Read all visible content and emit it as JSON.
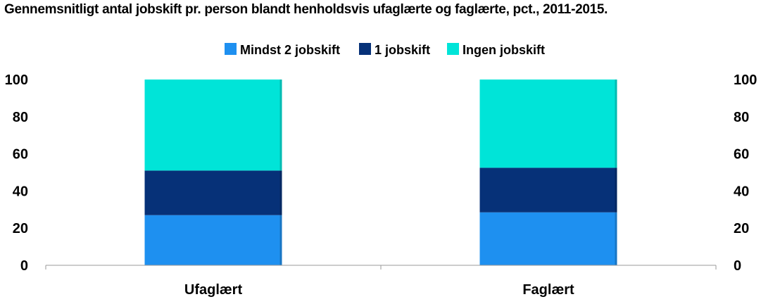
{
  "chart_data": {
    "type": "bar",
    "stacked": true,
    "title": "Gennemsnitligt antal jobskift pr. person blandt henholdsvis ufaglærte og faglærte, pct., 2011-2015.",
    "categories": [
      "Ufaglært",
      "Faglært"
    ],
    "series": [
      {
        "name": "Mindst 2 jobskift",
        "color": "#1e90f0",
        "values": [
          27,
          28.5
        ]
      },
      {
        "name": "1 jobskift",
        "color": "#063178",
        "values": [
          24,
          24
        ]
      },
      {
        "name": "Ingen jobskift",
        "color": "#00e4d8",
        "values": [
          49,
          47.5
        ]
      }
    ],
    "ylim": [
      0,
      100
    ],
    "yticks": [
      0,
      20,
      40,
      60,
      80,
      100
    ],
    "y_axis_right": true,
    "legend_position": "top",
    "grid": false
  }
}
